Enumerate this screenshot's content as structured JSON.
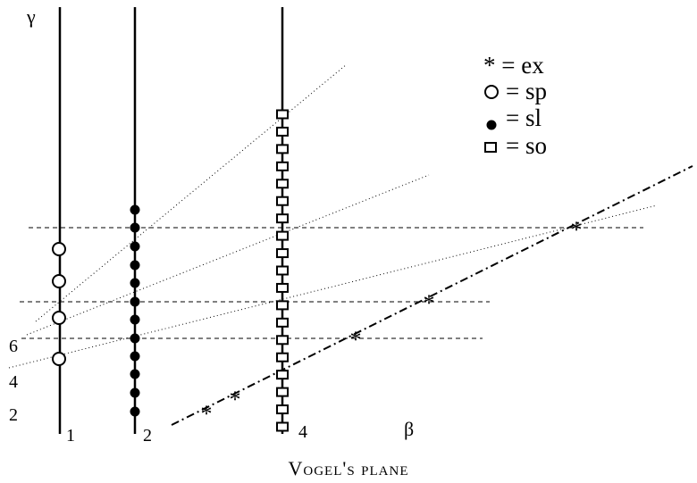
{
  "axes": {
    "vertical_label": "γ",
    "horizontal_label": "β",
    "beta_ticks": [
      "1",
      "2",
      "4"
    ],
    "gamma_ticks": [
      "2",
      "4",
      "6"
    ]
  },
  "legend": {
    "ex": "* = ex",
    "sp": "= sp",
    "sl": "= sl",
    "so": "= so"
  },
  "caption": "Vogel's plane"
}
